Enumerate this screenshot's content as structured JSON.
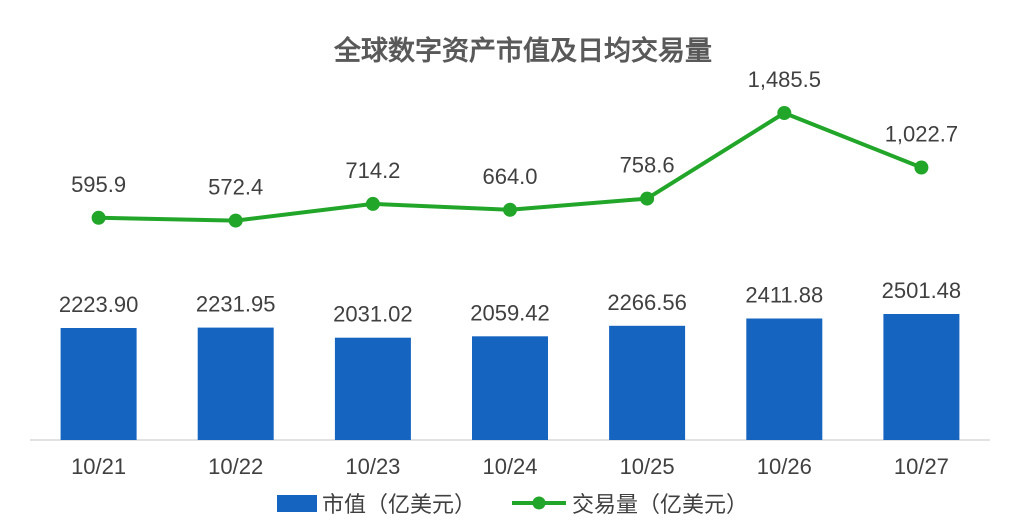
{
  "title": "全球数字资产市值及日均交易量",
  "chart_data": {
    "type": "bar",
    "title": "全球数字资产市值及日均交易量",
    "categories": [
      "10/21",
      "10/22",
      "10/23",
      "10/24",
      "10/25",
      "10/26",
      "10/27"
    ],
    "series": [
      {
        "name": "市值（亿美元）",
        "type": "bar",
        "values": [
          2223.9,
          2231.95,
          2031.02,
          2059.42,
          2266.56,
          2411.88,
          2501.48
        ],
        "labels": [
          "2223.90",
          "2231.95",
          "2031.02",
          "2059.42",
          "2266.56",
          "2411.88",
          "2501.48"
        ],
        "color": "#1565C0"
      },
      {
        "name": "交易量（亿美元）",
        "type": "line",
        "values": [
          595.9,
          572.4,
          714.2,
          664.0,
          758.6,
          1485.5,
          1022.7
        ],
        "labels": [
          "595.9",
          "572.4",
          "714.2",
          "664.0",
          "758.6",
          "1,485.5",
          "1,022.7"
        ],
        "color": "#22A62A"
      }
    ],
    "xlabel": "",
    "ylabel": "",
    "grid": false,
    "legend_position": "bottom"
  },
  "legend": {
    "bar_label": "市值（亿美元）",
    "line_label": "交易量（亿美元）"
  }
}
